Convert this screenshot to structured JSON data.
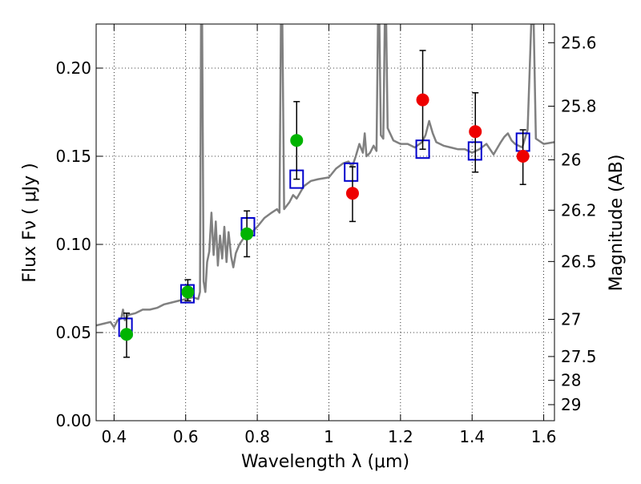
{
  "chart_data": {
    "type": "scatter",
    "xlabel": "Wavelength  λ (μm)",
    "ylabel": "Flux  Fν  ( μJy )",
    "y2label": "Magnitude (AB)",
    "xlim": [
      0.35,
      1.63
    ],
    "ylim": [
      0.0,
      0.225
    ],
    "grid": true,
    "xticks": [
      0.4,
      0.6,
      0.8,
      1.0,
      1.2,
      1.4,
      1.6
    ],
    "xtick_labels": [
      "0.4",
      "0.6",
      "0.8",
      "1",
      "1.2",
      "1.4",
      "1.6"
    ],
    "yticks": [
      0.0,
      0.05,
      0.1,
      0.15,
      0.2
    ],
    "ytick_labels": [
      "0.00",
      "0.05",
      "0.10",
      "0.15",
      "0.20"
    ],
    "magnitude_ticks": [
      {
        "flux": 0.2144,
        "label": "25.6"
      },
      {
        "flux": 0.1784,
        "label": "25.8"
      },
      {
        "flux": 0.148,
        "label": "26"
      },
      {
        "flux": 0.1194,
        "label": "26.2"
      },
      {
        "flux": 0.0903,
        "label": "26.5"
      },
      {
        "flux": 0.0575,
        "label": "27"
      },
      {
        "flux": 0.0364,
        "label": "27.5"
      },
      {
        "flux": 0.0229,
        "label": "28"
      },
      {
        "flux": 0.0091,
        "label": "29"
      }
    ],
    "series": [
      {
        "kind": "line",
        "color": "#808080",
        "points": [
          [
            0.35,
            0.054
          ],
          [
            0.37,
            0.055
          ],
          [
            0.39,
            0.056
          ],
          [
            0.4,
            0.053
          ],
          [
            0.41,
            0.057
          ],
          [
            0.42,
            0.058
          ],
          [
            0.425,
            0.063
          ],
          [
            0.43,
            0.057
          ],
          [
            0.44,
            0.06
          ],
          [
            0.46,
            0.061
          ],
          [
            0.48,
            0.063
          ],
          [
            0.5,
            0.063
          ],
          [
            0.52,
            0.064
          ],
          [
            0.54,
            0.066
          ],
          [
            0.56,
            0.067
          ],
          [
            0.58,
            0.068
          ],
          [
            0.6,
            0.069
          ],
          [
            0.62,
            0.07
          ],
          [
            0.635,
            0.069
          ],
          [
            0.64,
            0.073
          ],
          [
            0.643,
            0.225
          ],
          [
            0.646,
            0.225
          ],
          [
            0.65,
            0.079
          ],
          [
            0.655,
            0.073
          ],
          [
            0.66,
            0.09
          ],
          [
            0.666,
            0.096
          ],
          [
            0.672,
            0.118
          ],
          [
            0.678,
            0.094
          ],
          [
            0.684,
            0.113
          ],
          [
            0.69,
            0.088
          ],
          [
            0.696,
            0.105
          ],
          [
            0.702,
            0.092
          ],
          [
            0.708,
            0.11
          ],
          [
            0.714,
            0.09
          ],
          [
            0.72,
            0.107
          ],
          [
            0.727,
            0.093
          ],
          [
            0.733,
            0.087
          ],
          [
            0.74,
            0.095
          ],
          [
            0.75,
            0.1
          ],
          [
            0.76,
            0.103
          ],
          [
            0.78,
            0.106
          ],
          [
            0.8,
            0.11
          ],
          [
            0.82,
            0.115
          ],
          [
            0.84,
            0.118
          ],
          [
            0.855,
            0.12
          ],
          [
            0.862,
            0.118
          ],
          [
            0.866,
            0.225
          ],
          [
            0.87,
            0.225
          ],
          [
            0.875,
            0.12
          ],
          [
            0.89,
            0.124
          ],
          [
            0.9,
            0.128
          ],
          [
            0.91,
            0.126
          ],
          [
            0.93,
            0.133
          ],
          [
            0.95,
            0.136
          ],
          [
            0.97,
            0.137
          ],
          [
            1.0,
            0.138
          ],
          [
            1.02,
            0.143
          ],
          [
            1.04,
            0.146
          ],
          [
            1.055,
            0.147
          ],
          [
            1.065,
            0.144
          ],
          [
            1.075,
            0.15
          ],
          [
            1.085,
            0.157
          ],
          [
            1.095,
            0.152
          ],
          [
            1.1,
            0.163
          ],
          [
            1.105,
            0.15
          ],
          [
            1.115,
            0.152
          ],
          [
            1.125,
            0.156
          ],
          [
            1.133,
            0.153
          ],
          [
            1.137,
            0.225
          ],
          [
            1.141,
            0.225
          ],
          [
            1.145,
            0.162
          ],
          [
            1.152,
            0.16
          ],
          [
            1.156,
            0.225
          ],
          [
            1.16,
            0.225
          ],
          [
            1.164,
            0.166
          ],
          [
            1.18,
            0.159
          ],
          [
            1.2,
            0.157
          ],
          [
            1.22,
            0.157
          ],
          [
            1.24,
            0.155
          ],
          [
            1.26,
            0.158
          ],
          [
            1.27,
            0.162
          ],
          [
            1.28,
            0.17
          ],
          [
            1.29,
            0.163
          ],
          [
            1.3,
            0.158
          ],
          [
            1.32,
            0.156
          ],
          [
            1.34,
            0.155
          ],
          [
            1.36,
            0.154
          ],
          [
            1.38,
            0.154
          ],
          [
            1.4,
            0.152
          ],
          [
            1.42,
            0.154
          ],
          [
            1.44,
            0.157
          ],
          [
            1.46,
            0.151
          ],
          [
            1.48,
            0.158
          ],
          [
            1.49,
            0.161
          ],
          [
            1.5,
            0.163
          ],
          [
            1.51,
            0.159
          ],
          [
            1.52,
            0.157
          ],
          [
            1.54,
            0.155
          ],
          [
            1.555,
            0.165
          ],
          [
            1.565,
            0.225
          ],
          [
            1.572,
            0.225
          ],
          [
            1.578,
            0.16
          ],
          [
            1.6,
            0.157
          ],
          [
            1.63,
            0.158
          ]
        ]
      },
      {
        "kind": "open-square",
        "color": "#0000cc",
        "x": [
          0.432,
          0.605,
          0.774,
          0.91,
          1.062,
          1.262,
          1.408,
          1.542
        ],
        "y": [
          0.053,
          0.072,
          0.11,
          0.137,
          0.141,
          0.154,
          0.153,
          0.158
        ]
      },
      {
        "kind": "filled-circle",
        "color": "#00b400",
        "x": [
          0.435,
          0.606,
          0.771,
          0.91
        ],
        "y": [
          0.049,
          0.073,
          0.106,
          0.159
        ]
      },
      {
        "kind": "filled-circle",
        "color": "#ee0000",
        "x": [
          1.066,
          1.262,
          1.409,
          1.542
        ],
        "y": [
          0.129,
          0.182,
          0.164,
          0.15
        ]
      },
      {
        "kind": "errorbar",
        "color": "#000000",
        "x": [
          0.435,
          0.606,
          0.771,
          0.91,
          1.066,
          1.262,
          1.409,
          1.542
        ],
        "ylo": [
          0.036,
          0.068,
          0.093,
          0.137,
          0.113,
          0.154,
          0.141,
          0.134
        ],
        "yhi": [
          0.061,
          0.08,
          0.119,
          0.181,
          0.144,
          0.21,
          0.186,
          0.165
        ]
      }
    ]
  }
}
